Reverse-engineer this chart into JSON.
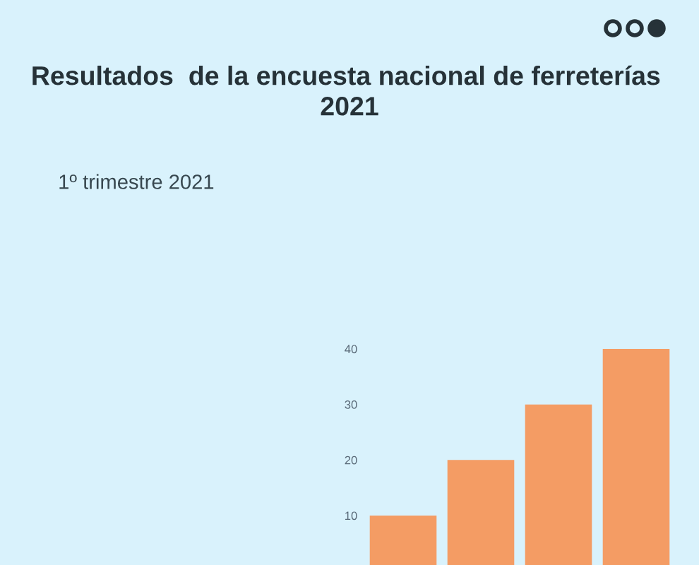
{
  "chart_data": {
    "type": "bar",
    "title": "Resultados  de la encuesta nacional de ferreterías  2021",
    "subtitle": "1º trimestre 2021",
    "categories": [
      null,
      null,
      null,
      null
    ],
    "values": [
      10,
      20,
      30,
      40
    ],
    "color": "#f49c64",
    "ylim": [
      1.1,
      40
    ],
    "yticks": [
      10,
      20,
      30,
      40
    ],
    "grid": false,
    "tick_labels": "y"
  }
}
